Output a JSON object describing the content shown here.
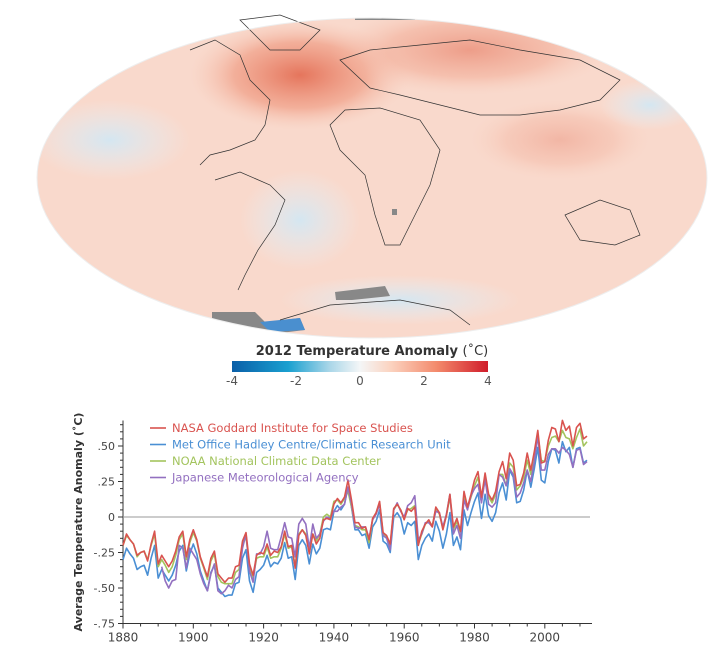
{
  "colorbar": {
    "title": "2012 Temperature Anomaly",
    "unit": "(˚C)",
    "ticks": [
      "-4",
      "-2",
      "0",
      "2",
      "4"
    ],
    "colors": {
      "min": "#0a5fa8",
      "mid": "#f4f6f7",
      "max": "#d01c2a"
    }
  },
  "chart_data": {
    "type": "line",
    "ylabel": "Average Temperature Anomaly (˚C)",
    "xlabel": "",
    "xlim": [
      1880,
      2012
    ],
    "ylim": [
      -0.75,
      0.7
    ],
    "x_ticks": [
      "1880",
      "1900",
      "1920",
      "1940",
      "1960",
      "1980",
      "2000"
    ],
    "y_ticks": [
      ".50",
      ".25",
      "0",
      "-.25",
      "-.50",
      "-.75"
    ],
    "y_tick_values": [
      0.5,
      0.25,
      0,
      -0.25,
      -0.5,
      -0.75
    ],
    "x_start": 1880,
    "legend_position": "top-left",
    "series": [
      {
        "name": "NASA Goddard Institute for Space Studies",
        "color": "#d9534f",
        "values": [
          -0.2,
          -0.12,
          -0.16,
          -0.19,
          -0.27,
          -0.25,
          -0.24,
          -0.31,
          -0.19,
          -0.1,
          -0.33,
          -0.27,
          -0.31,
          -0.35,
          -0.31,
          -0.24,
          -0.14,
          -0.1,
          -0.28,
          -0.16,
          -0.09,
          -0.16,
          -0.28,
          -0.35,
          -0.42,
          -0.29,
          -0.24,
          -0.4,
          -0.43,
          -0.46,
          -0.43,
          -0.43,
          -0.35,
          -0.34,
          -0.17,
          -0.11,
          -0.33,
          -0.41,
          -0.27,
          -0.25,
          -0.26,
          -0.19,
          -0.27,
          -0.24,
          -0.25,
          -0.21,
          -0.1,
          -0.21,
          -0.2,
          -0.36,
          -0.13,
          -0.09,
          -0.13,
          -0.26,
          -0.12,
          -0.19,
          -0.15,
          -0.02,
          -0.01,
          -0.02,
          0.09,
          0.13,
          0.1,
          0.14,
          0.26,
          0.12,
          -0.04,
          -0.04,
          -0.08,
          -0.07,
          -0.16,
          -0.01,
          0.03,
          0.11,
          -0.11,
          -0.13,
          -0.19,
          0.06,
          0.09,
          0.05,
          -0.02,
          0.06,
          0.04,
          0.07,
          -0.2,
          -0.1,
          -0.05,
          -0.02,
          -0.07,
          0.07,
          0.03,
          -0.09,
          0.01,
          0.16,
          -0.07,
          -0.01,
          -0.1,
          0.18,
          0.07,
          0.16,
          0.26,
          0.32,
          0.14,
          0.31,
          0.16,
          0.12,
          0.18,
          0.32,
          0.39,
          0.27,
          0.45,
          0.4,
          0.22,
          0.23,
          0.31,
          0.45,
          0.33,
          0.46,
          0.61,
          0.38,
          0.39,
          0.54,
          0.63,
          0.62,
          0.53,
          0.68,
          0.61,
          0.64,
          0.5,
          0.63,
          0.66,
          0.55,
          0.57
        ]
      },
      {
        "name": "Met Office Hadley Centre/Climatic Research Unit",
        "color": "#4a8fd4",
        "values": [
          -0.3,
          -0.22,
          -0.26,
          -0.29,
          -0.37,
          -0.35,
          -0.34,
          -0.41,
          -0.29,
          -0.2,
          -0.43,
          -0.37,
          -0.41,
          -0.45,
          -0.41,
          -0.34,
          -0.24,
          -0.2,
          -0.38,
          -0.26,
          -0.19,
          -0.26,
          -0.38,
          -0.45,
          -0.52,
          -0.39,
          -0.34,
          -0.5,
          -0.53,
          -0.56,
          -0.55,
          -0.55,
          -0.47,
          -0.46,
          -0.29,
          -0.23,
          -0.45,
          -0.53,
          -0.39,
          -0.37,
          -0.34,
          -0.27,
          -0.35,
          -0.32,
          -0.33,
          -0.29,
          -0.18,
          -0.29,
          -0.28,
          -0.44,
          -0.2,
          -0.16,
          -0.2,
          -0.33,
          -0.19,
          -0.26,
          -0.22,
          -0.09,
          -0.08,
          -0.09,
          0.04,
          0.08,
          0.05,
          0.09,
          0.21,
          0.07,
          -0.09,
          -0.09,
          -0.13,
          -0.12,
          -0.22,
          -0.07,
          -0.03,
          0.05,
          -0.17,
          -0.19,
          -0.25,
          0.0,
          0.03,
          -0.01,
          -0.12,
          -0.04,
          -0.06,
          -0.03,
          -0.3,
          -0.2,
          -0.15,
          -0.12,
          -0.17,
          -0.03,
          -0.1,
          -0.22,
          -0.12,
          0.03,
          -0.2,
          -0.14,
          -0.23,
          0.05,
          -0.06,
          0.03,
          0.11,
          0.17,
          -0.01,
          0.16,
          0.01,
          -0.03,
          0.03,
          0.17,
          0.24,
          0.12,
          0.33,
          0.28,
          0.1,
          0.11,
          0.19,
          0.33,
          0.21,
          0.34,
          0.49,
          0.26,
          0.24,
          0.39,
          0.48,
          0.47,
          0.38,
          0.53,
          0.46,
          0.49,
          0.35,
          0.48,
          0.49,
          0.38,
          0.4
        ]
      },
      {
        "name": "NOAA National Climatic Data Center",
        "color": "#a3c45e",
        "values": [
          -0.2,
          -0.13,
          -0.16,
          -0.19,
          -0.28,
          -0.25,
          -0.24,
          -0.3,
          -0.2,
          -0.12,
          -0.35,
          -0.3,
          -0.34,
          -0.39,
          -0.35,
          -0.27,
          -0.16,
          -0.12,
          -0.3,
          -0.18,
          -0.11,
          -0.17,
          -0.29,
          -0.36,
          -0.44,
          -0.31,
          -0.26,
          -0.42,
          -0.46,
          -0.47,
          -0.47,
          -0.47,
          -0.39,
          -0.37,
          -0.19,
          -0.14,
          -0.35,
          -0.43,
          -0.29,
          -0.28,
          -0.28,
          -0.21,
          -0.29,
          -0.28,
          -0.28,
          -0.22,
          -0.12,
          -0.22,
          -0.21,
          -0.35,
          -0.12,
          -0.09,
          -0.12,
          -0.25,
          -0.12,
          -0.17,
          -0.12,
          0.0,
          0.02,
          0.0,
          0.11,
          0.12,
          0.09,
          0.13,
          0.18,
          0.07,
          -0.06,
          -0.07,
          -0.09,
          -0.09,
          -0.18,
          -0.02,
          0.03,
          0.1,
          -0.12,
          -0.14,
          -0.2,
          0.05,
          0.09,
          0.05,
          -0.01,
          0.05,
          0.06,
          0.08,
          -0.19,
          -0.12,
          -0.05,
          -0.03,
          -0.06,
          0.06,
          0.02,
          -0.08,
          0.01,
          0.14,
          -0.09,
          -0.03,
          -0.11,
          0.15,
          0.06,
          0.14,
          0.22,
          0.28,
          0.13,
          0.26,
          0.14,
          0.1,
          0.16,
          0.3,
          0.3,
          0.22,
          0.38,
          0.35,
          0.19,
          0.22,
          0.28,
          0.4,
          0.3,
          0.45,
          0.58,
          0.4,
          0.39,
          0.5,
          0.56,
          0.57,
          0.53,
          0.61,
          0.56,
          0.55,
          0.48,
          0.56,
          0.62,
          0.5,
          0.53
        ]
      },
      {
        "name": "Japanese Meteorological Agency",
        "color": "#9370c0",
        "values": [
          null,
          null,
          null,
          null,
          null,
          null,
          null,
          null,
          null,
          null,
          null,
          -0.35,
          -0.45,
          -0.5,
          -0.45,
          -0.44,
          -0.2,
          -0.22,
          -0.36,
          -0.22,
          -0.26,
          -0.3,
          -0.4,
          -0.47,
          -0.52,
          -0.4,
          -0.33,
          -0.52,
          -0.54,
          -0.52,
          -0.48,
          -0.5,
          -0.44,
          -0.42,
          -0.22,
          -0.12,
          -0.38,
          -0.46,
          -0.26,
          -0.26,
          -0.21,
          -0.1,
          -0.22,
          -0.23,
          -0.23,
          -0.14,
          -0.04,
          -0.14,
          -0.15,
          -0.28,
          -0.05,
          -0.01,
          -0.05,
          -0.22,
          -0.05,
          -0.15,
          -0.12,
          -0.03,
          0.0,
          -0.01,
          0.04,
          0.04,
          0.07,
          0.09,
          0.21,
          0.09,
          -0.07,
          -0.08,
          -0.07,
          -0.07,
          -0.15,
          -0.02,
          0.02,
          0.09,
          -0.13,
          -0.15,
          -0.23,
          0.05,
          0.1,
          0.04,
          0.0,
          0.08,
          0.1,
          0.15,
          -0.16,
          -0.12,
          -0.04,
          -0.04,
          -0.07,
          0.04,
          0.03,
          -0.07,
          0.02,
          0.16,
          -0.12,
          -0.06,
          -0.15,
          0.12,
          0.05,
          0.15,
          0.2,
          0.23,
          0.1,
          0.27,
          0.09,
          0.07,
          0.1,
          0.3,
          0.28,
          0.22,
          0.34,
          0.3,
          0.14,
          0.17,
          0.24,
          0.33,
          0.25,
          0.39,
          0.57,
          0.33,
          0.33,
          0.44,
          0.48,
          0.48,
          0.45,
          0.49,
          0.47,
          0.44,
          0.35,
          0.47,
          0.48,
          0.37,
          0.39
        ]
      }
    ]
  }
}
